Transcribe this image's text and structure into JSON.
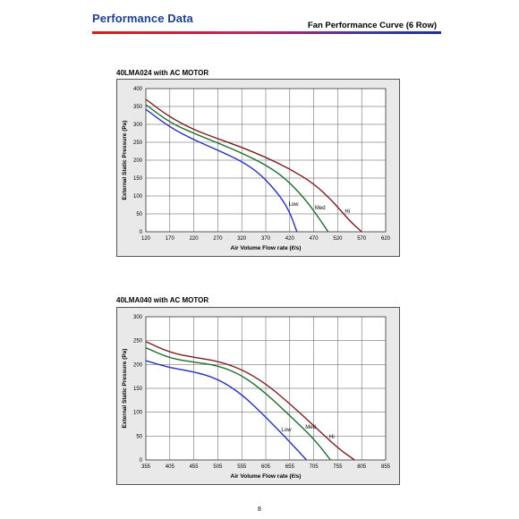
{
  "header": {
    "title": "Performance Data",
    "subtitle": "Fan Performance Curve (6 Row)",
    "page_number": "8"
  },
  "chart_data": [
    {
      "type": "line",
      "title": "40LMA024 with AC MOTOR",
      "xlabel": "Air Volume Flow rate (ℓ/s)",
      "ylabel": "External Static Pressure (Pa)",
      "xlim": [
        120,
        620
      ],
      "ylim": [
        0,
        400
      ],
      "xticks": [
        120,
        170,
        220,
        270,
        320,
        370,
        420,
        470,
        520,
        570,
        620
      ],
      "yticks": [
        0,
        50,
        100,
        150,
        200,
        250,
        300,
        350,
        400
      ],
      "grid": true,
      "series": [
        {
          "name": "Hi",
          "color": "#7a1e1e",
          "x": [
            120,
            170,
            220,
            270,
            320,
            370,
            420,
            470,
            510,
            545,
            570
          ],
          "y": [
            370,
            320,
            285,
            260,
            236,
            208,
            176,
            135,
            85,
            30,
            0
          ]
        },
        {
          "name": "Med",
          "color": "#1e6a2c",
          "x": [
            120,
            170,
            220,
            270,
            320,
            370,
            410,
            450,
            480,
            500
          ],
          "y": [
            355,
            305,
            275,
            248,
            220,
            187,
            150,
            95,
            40,
            0
          ]
        },
        {
          "name": "Low",
          "color": "#2a32b8",
          "x": [
            120,
            170,
            220,
            270,
            320,
            360,
            400,
            420,
            435
          ],
          "y": [
            342,
            292,
            257,
            228,
            197,
            160,
            100,
            55,
            0
          ]
        }
      ]
    },
    {
      "type": "line",
      "title": "40LMA040 with AC MOTOR",
      "xlabel": "Air Volume Flow rate (ℓ/s)",
      "ylabel": "External Static Pressure (Pa)",
      "xlim": [
        355,
        855
      ],
      "ylim": [
        0,
        300
      ],
      "xticks": [
        355,
        405,
        455,
        505,
        555,
        605,
        655,
        705,
        755,
        805,
        855
      ],
      "yticks": [
        0,
        50,
        100,
        150,
        200,
        250,
        300
      ],
      "grid": true,
      "series": [
        {
          "name": "Hi",
          "color": "#7a1e1e",
          "x": [
            355,
            405,
            455,
            505,
            555,
            605,
            655,
            705,
            755,
            790
          ],
          "y": [
            248,
            225,
            215,
            207,
            190,
            160,
            118,
            72,
            25,
            0
          ]
        },
        {
          "name": "Med",
          "color": "#1e6a2c",
          "x": [
            355,
            405,
            455,
            505,
            555,
            605,
            655,
            705,
            740
          ],
          "y": [
            235,
            213,
            205,
            198,
            178,
            140,
            93,
            45,
            0
          ]
        },
        {
          "name": "Low",
          "color": "#2a32b8",
          "x": [
            355,
            405,
            455,
            505,
            555,
            605,
            655,
            690
          ],
          "y": [
            208,
            193,
            185,
            170,
            138,
            90,
            38,
            0
          ]
        }
      ]
    }
  ]
}
